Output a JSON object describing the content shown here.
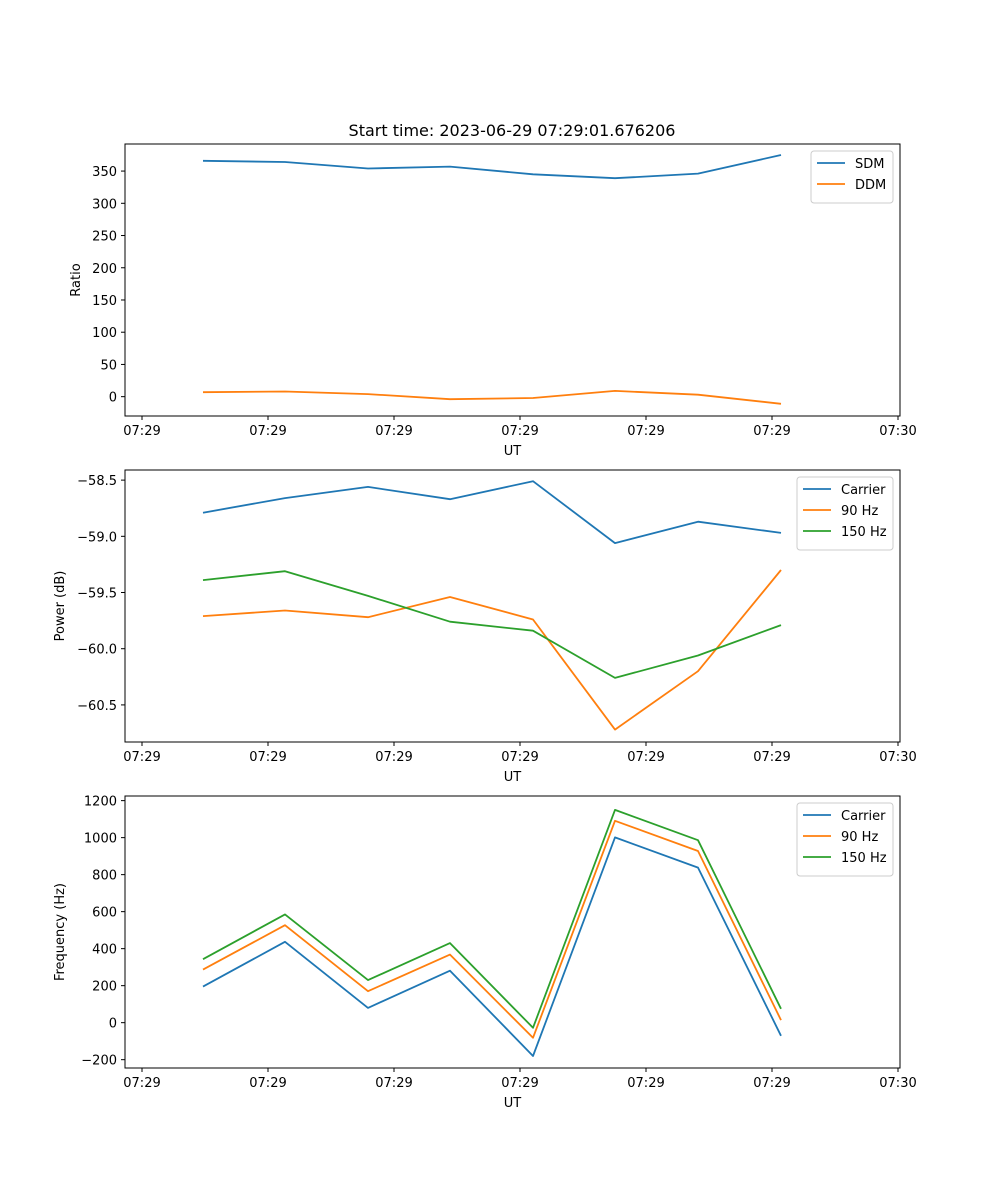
{
  "title": "Start time: 2023-06-29 07:29:01.676206",
  "colors": {
    "blue": "#1f77b4",
    "orange": "#ff7f0e",
    "green": "#2ca02c"
  },
  "chart_data": [
    {
      "type": "line",
      "xlabel": "UT",
      "ylabel": "Ratio",
      "x_tick_labels": [
        "07:29",
        "07:29",
        "07:29",
        "07:29",
        "07:29",
        "07:29",
        "07:29"
      ],
      "x_end_label": "07:30",
      "y_ticks": [
        0,
        50,
        100,
        150,
        200,
        250,
        300,
        350
      ],
      "ylim": [
        -30,
        392
      ],
      "legend_position": "top-right",
      "grid": false,
      "series": [
        {
          "name": "SDM",
          "color": "blue",
          "values": [
            366,
            364,
            354,
            357,
            345,
            339,
            346,
            375
          ]
        },
        {
          "name": "DDM",
          "color": "orange",
          "values": [
            7,
            8,
            4,
            -4,
            -2,
            9,
            3,
            -11
          ]
        }
      ]
    },
    {
      "type": "line",
      "xlabel": "UT",
      "ylabel": "Power (dB)",
      "x_tick_labels": [
        "07:29",
        "07:29",
        "07:29",
        "07:29",
        "07:29",
        "07:29",
        "07:29"
      ],
      "x_end_label": "07:30",
      "y_ticks": [
        -60.5,
        -60.0,
        -59.5,
        -59.0,
        -58.5
      ],
      "y_tick_labels": [
        "−60.5",
        "−60.0",
        "−59.5",
        "−59.0",
        "−58.5"
      ],
      "ylim": [
        -60.83,
        -58.41
      ],
      "legend_position": "top-right",
      "grid": false,
      "series": [
        {
          "name": "Carrier",
          "color": "blue",
          "values": [
            -58.79,
            -58.66,
            -58.56,
            -58.67,
            -58.51,
            -59.06,
            -58.87,
            -58.97
          ]
        },
        {
          "name": "90 Hz",
          "color": "orange",
          "values": [
            -59.71,
            -59.66,
            -59.72,
            -59.54,
            -59.74,
            -60.72,
            -60.2,
            -59.3
          ]
        },
        {
          "name": "150 Hz",
          "color": "green",
          "values": [
            -59.39,
            -59.31,
            -59.53,
            -59.76,
            -59.84,
            -60.26,
            -60.06,
            -59.79
          ]
        }
      ]
    },
    {
      "type": "line",
      "xlabel": "UT",
      "ylabel": "Frequency (Hz)",
      "x_tick_labels": [
        "07:29",
        "07:29",
        "07:29",
        "07:29",
        "07:29",
        "07:29",
        "07:29"
      ],
      "x_end_label": "07:30",
      "y_ticks": [
        -200,
        0,
        200,
        400,
        600,
        800,
        1000,
        1200
      ],
      "y_tick_labels": [
        "−200",
        "0",
        "200",
        "400",
        "600",
        "800",
        "1000",
        "1200"
      ],
      "ylim": [
        -245,
        1225
      ],
      "legend_position": "top-right",
      "grid": false,
      "series": [
        {
          "name": "Carrier",
          "color": "blue",
          "values": [
            195,
            437,
            80,
            281,
            -180,
            1001,
            838,
            -71
          ]
        },
        {
          "name": "90 Hz",
          "color": "orange",
          "values": [
            287,
            527,
            170,
            368,
            -82,
            1091,
            928,
            14
          ]
        },
        {
          "name": "150 Hz",
          "color": "green",
          "values": [
            343,
            585,
            230,
            430,
            -28,
            1150,
            986,
            75
          ]
        }
      ]
    }
  ]
}
